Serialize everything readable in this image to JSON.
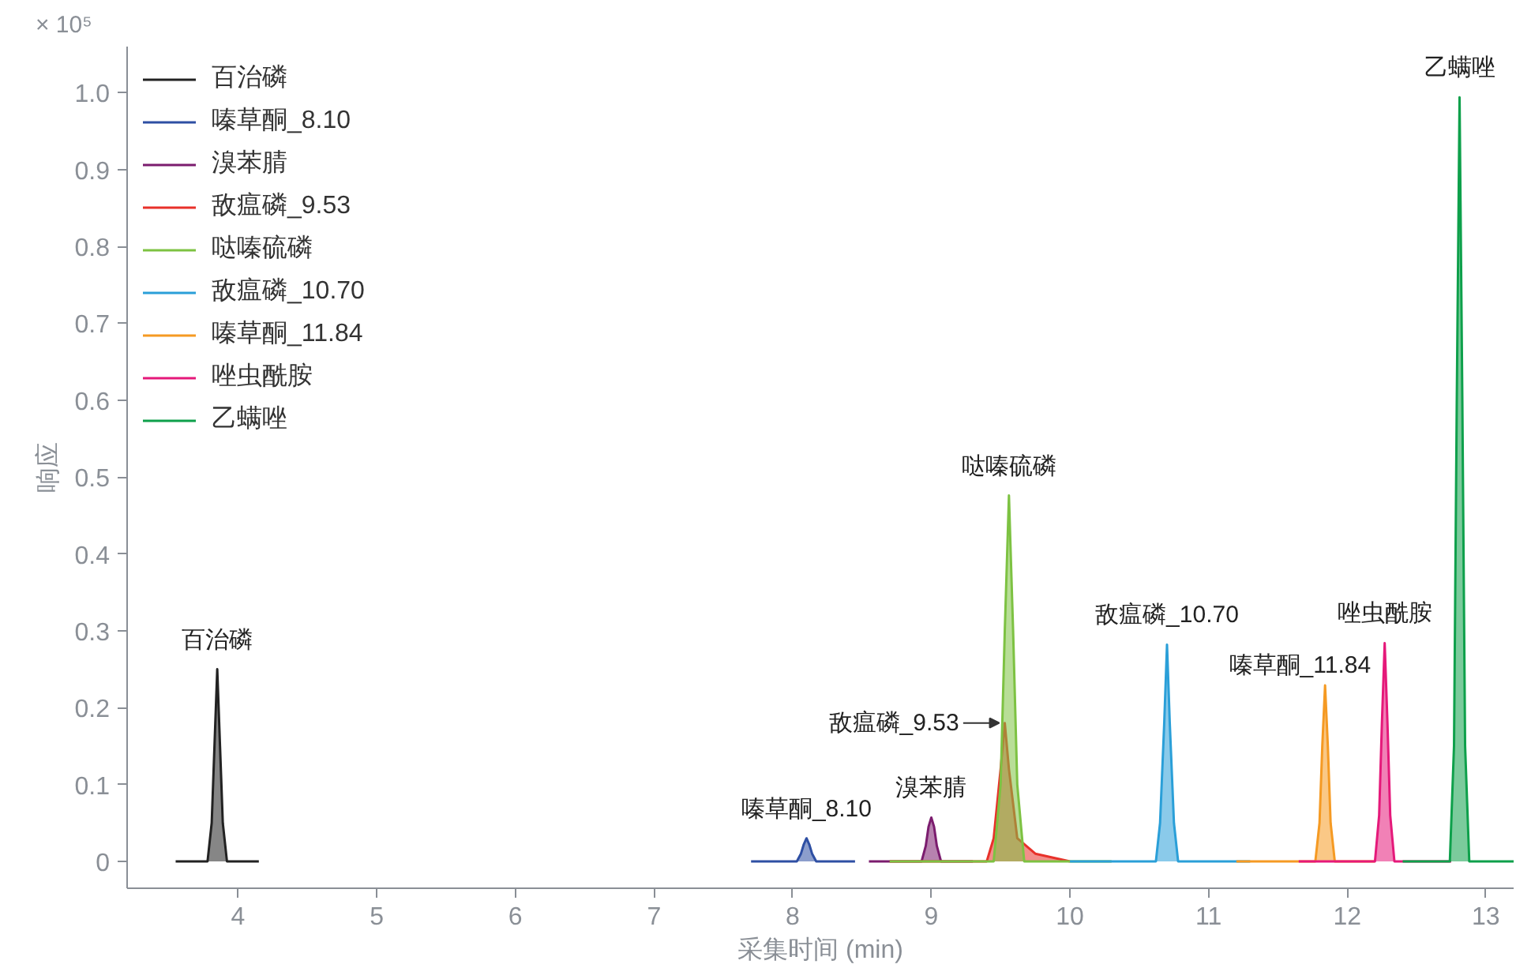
{
  "chart_data": {
    "type": "area",
    "xlabel": "采集时间 (min)",
    "ylabel": "响应",
    "xlim": [
      3.2,
      13.2
    ],
    "xticks": [
      4,
      5,
      6,
      7,
      8,
      9,
      10,
      11,
      12,
      13
    ],
    "ylim": [
      -0.035,
      1.06
    ],
    "yticks": [
      0,
      0.1,
      0.2,
      0.3,
      0.4,
      0.5,
      0.6,
      0.7,
      0.8,
      0.9,
      {
        "value": 1,
        "label": "1.0"
      }
    ],
    "grid": false,
    "legend": "top left",
    "series": [
      {
        "name": "百治磷",
        "color": "#222222",
        "x": [
          3.55,
          3.78,
          3.81,
          3.83,
          3.85,
          3.87,
          3.89,
          3.92,
          4.15
        ],
        "values": [
          0,
          0,
          0.05,
          0.15,
          0.25,
          0.15,
          0.05,
          0,
          0
        ]
      },
      {
        "name": "嗪草酮_8.10",
        "color": "#2e4fa3",
        "x": [
          7.7,
          8.03,
          8.06,
          8.08,
          8.1,
          8.12,
          8.14,
          8.17,
          8.45
        ],
        "values": [
          0,
          0,
          0.01,
          0.022,
          0.03,
          0.022,
          0.01,
          0,
          0
        ]
      },
      {
        "name": "溴苯腈",
        "color": "#7b1c6e",
        "x": [
          8.55,
          8.93,
          8.96,
          8.98,
          9.0,
          9.02,
          9.04,
          9.07,
          9.3
        ],
        "values": [
          0,
          0,
          0.02,
          0.045,
          0.057,
          0.045,
          0.02,
          0,
          0
        ]
      },
      {
        "name": "敌瘟磷_9.53",
        "color": "#e8312a",
        "x": [
          8.7,
          9.4,
          9.45,
          9.5,
          9.53,
          9.56,
          9.62,
          9.75,
          10.0
        ],
        "values": [
          0,
          0,
          0.03,
          0.12,
          0.18,
          0.12,
          0.03,
          0.01,
          0
        ]
      },
      {
        "name": "哒嗪硫磷",
        "color": "#7dc242",
        "x": [
          8.7,
          9.45,
          9.5,
          9.53,
          9.56,
          9.59,
          9.62,
          9.67,
          10.3
        ],
        "values": [
          0,
          0,
          0.1,
          0.3,
          0.476,
          0.3,
          0.1,
          0,
          0
        ]
      },
      {
        "name": "敌瘟磷_10.70",
        "color": "#2a9fd8",
        "x": [
          10.0,
          10.62,
          10.65,
          10.68,
          10.7,
          10.72,
          10.75,
          10.78,
          11.3
        ],
        "values": [
          0,
          0,
          0.05,
          0.18,
          0.282,
          0.18,
          0.05,
          0,
          0
        ]
      },
      {
        "name": "嗪草酮_11.84",
        "color": "#f59a23",
        "x": [
          11.2,
          11.77,
          11.8,
          11.82,
          11.84,
          11.86,
          11.88,
          11.91,
          12.2
        ],
        "values": [
          0,
          0,
          0.05,
          0.15,
          0.229,
          0.15,
          0.05,
          0,
          0
        ]
      },
      {
        "name": "唑虫酰胺",
        "color": "#e5197a",
        "x": [
          11.65,
          12.2,
          12.23,
          12.25,
          12.27,
          12.29,
          12.31,
          12.34,
          12.75
        ],
        "values": [
          0,
          0,
          0.06,
          0.18,
          0.284,
          0.18,
          0.06,
          0,
          0
        ]
      },
      {
        "name": "乙螨唑",
        "color": "#0ea04b",
        "x": [
          12.4,
          12.74,
          12.77,
          12.79,
          12.81,
          12.83,
          12.85,
          12.88,
          13.2
        ],
        "values": [
          0,
          0,
          0.15,
          0.6,
          0.994,
          0.6,
          0.15,
          0,
          0
        ]
      }
    ],
    "annotations": [
      "× 10⁵",
      {
        "text": "百治磷",
        "x": 3.85,
        "y": 0.25
      },
      {
        "text": "嗪草酮_8.10",
        "x": 8.1,
        "y": 0.03
      },
      {
        "text": "溴苯腈",
        "x": 9.0,
        "y": 0.057
      },
      {
        "text": "敌瘟磷_9.53",
        "x": 9.53,
        "y": 0.18
      },
      {
        "text": "哒嗪硫磷",
        "x": 9.56,
        "y": 0.476
      },
      {
        "text": "敌瘟磷_10.70",
        "x": 10.7,
        "y": 0.282
      },
      {
        "text": "嗪草酮_11.84",
        "x": 11.84,
        "y": 0.229
      },
      {
        "text": "唑虫酰胺",
        "x": 12.27,
        "y": 0.284
      },
      {
        "text": "乙螨唑",
        "x": 12.81,
        "y": 0.994
      }
    ]
  }
}
